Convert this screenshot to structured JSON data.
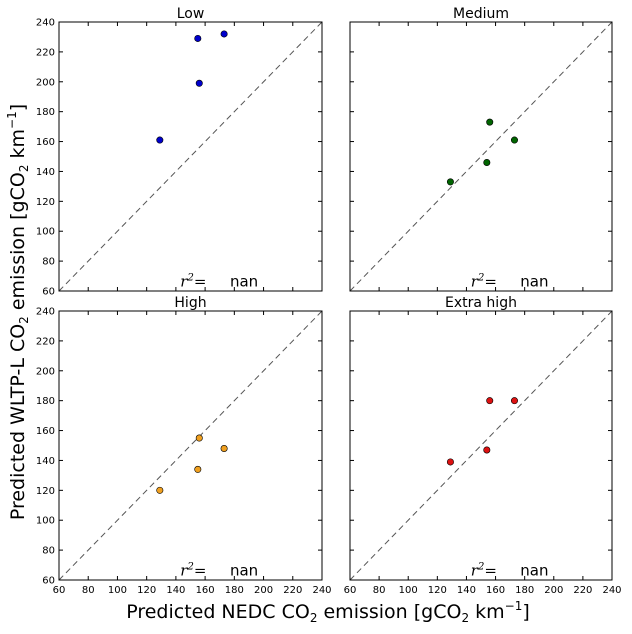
{
  "chart_data": {
    "type": "scatter",
    "xlabel": "Predicted NEDC CO",
    "xlabel_sub": "2",
    "xlabel_tail": " emission [gCO",
    "xlabel_sub2": "2",
    "xlabel_unit": " km",
    "xlabel_sup": "−1",
    "xlabel_end": "]",
    "ylabel": "Predicted WLTP-L  CO",
    "ylabel_sub": "2",
    "ylabel_tail": " emission [gCO",
    "ylabel_sub2": "2",
    "ylabel_unit": " km",
    "ylabel_sup": "−1",
    "ylabel_end": "]",
    "xlim": [
      60,
      240
    ],
    "ylim": [
      60,
      240
    ],
    "xticks": [
      60,
      80,
      100,
      120,
      140,
      160,
      180,
      200,
      220,
      240
    ],
    "yticks": [
      60,
      80,
      100,
      120,
      140,
      160,
      180,
      200,
      220,
      240
    ],
    "grid": false,
    "diagonal": "dashed y=x reference line",
    "panels": [
      {
        "title": "Low",
        "color": "#0000cc",
        "points": [
          [
            129,
            161
          ],
          [
            155,
            229
          ],
          [
            156,
            199
          ],
          [
            173,
            232
          ]
        ],
        "r2_label": "r",
        "r2_sup": "2",
        "r2_eq": "=",
        "r2_value": "nan"
      },
      {
        "title": "Medium",
        "color": "#006400",
        "points": [
          [
            129,
            133
          ],
          [
            154,
            146
          ],
          [
            156,
            173
          ],
          [
            173,
            161
          ]
        ],
        "r2_label": "r",
        "r2_sup": "2",
        "r2_eq": "=",
        "r2_value": "nan"
      },
      {
        "title": "High",
        "color": "#f0a020",
        "points": [
          [
            129,
            120
          ],
          [
            155,
            134
          ],
          [
            156,
            155
          ],
          [
            173,
            148
          ]
        ],
        "r2_label": "r",
        "r2_sup": "2",
        "r2_eq": "=",
        "r2_value": "nan"
      },
      {
        "title": "Extra high",
        "color": "#dd1111",
        "points": [
          [
            129,
            139
          ],
          [
            154,
            147
          ],
          [
            156,
            180
          ],
          [
            173,
            180
          ]
        ],
        "r2_label": "r",
        "r2_sup": "2",
        "r2_eq": "=",
        "r2_value": "nan"
      }
    ]
  }
}
